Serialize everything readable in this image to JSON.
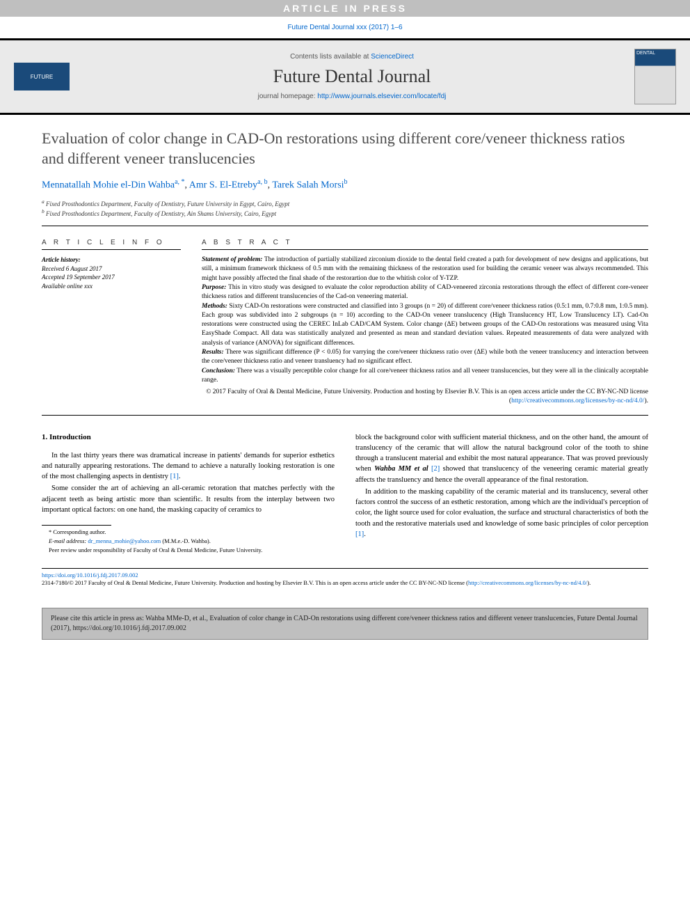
{
  "banner": {
    "text": "ARTICLE IN PRESS"
  },
  "journal_ref": "Future Dental Journal xxx (2017) 1–6",
  "header": {
    "contents_prefix": "Contents lists available at ",
    "contents_link": "ScienceDirect",
    "journal_name": "Future Dental Journal",
    "homepage_prefix": "journal homepage: ",
    "homepage_url": "http://www.journals.elsevier.com/locate/fdj",
    "left_logo_text": "FUTURE",
    "right_cover_text": "DENTAL"
  },
  "title": "Evaluation of color change in CAD-On restorations using different core/veneer thickness ratios and different veneer translucencies",
  "authors": [
    {
      "name": "Mennatallah Mohie el-Din Wahba",
      "sup": "a, *"
    },
    {
      "name": "Amr S. El-Etreby",
      "sup": "a, b"
    },
    {
      "name": "Tarek Salah Morsi",
      "sup": "b"
    }
  ],
  "affiliations": [
    {
      "key": "a",
      "text": "Fixed Prosthodontics Department, Faculty of Dentistry, Future University in Egypt, Cairo, Egypt"
    },
    {
      "key": "b",
      "text": "Fixed Prosthodontics Department, Faculty of Dentistry, Ain Shams University, Cairo, Egypt"
    }
  ],
  "article_info": {
    "header": "A R T I C L E  I N F O",
    "history_label": "Article history:",
    "received": "Received 6 August 2017",
    "accepted": "Accepted 19 September 2017",
    "online": "Available online xxx"
  },
  "abstract": {
    "header": "A B S T R A C T",
    "statement_label": "Statement of problem:",
    "statement": " The introduction of partially stabilized zirconium dioxide to the dental field created a path for development of new designs and applications, but still, a minimum framework thickness of 0.5 mm with the remaining thickness of the restoration used for building the ceramic veneer was always recommended. This might have possibly affected the final shade of the restorartion due to the whitish color of Y-TZP.",
    "purpose_label": "Purpose:",
    "purpose": " This in vitro study was designed to evaluate the color reproduction ability of CAD-veneered zirconia restorations through the effect of different core-veneer thickness ratios and different translucencies of the Cad-on veneering material.",
    "methods_label": "Methods:",
    "methods": " Sixty CAD-On restorations were constructed and classified into 3 groups (n = 20) of different core/veneer thickness ratios (0.5:1 mm, 0.7:0.8 mm, 1:0.5 mm). Each group was subdivided into 2 subgroups (n = 10) according to the CAD-On veneer translucency (High Translucency HT, Low Translucency LT). Cad-On restorations were constructed using the CEREC InLab CAD/CAM System. Color change (ΔE) between groups of the CAD-On restorations was measured using Vita EasyShade Compact. All data was statistically analyzed and presented as mean and standard deviation values. Repeated measurements of data were analyzed with analysis of variance (ANOVA) for significant differences.",
    "results_label": "Results:",
    "results": " There was significant difference (P < 0.05) for varrying the core/veneer thickness ratio over (ΔE) while both the veneer translucency and interaction between the core/veneer thickness ratio and veneer transluency had no significant effect.",
    "conclusion_label": "Conclusion:",
    "conclusion": " There was a visually perceptible color change for all core/veneer thickness ratios and all veneer translucencies, but they were all in the clinically acceptable range.",
    "copyright": "© 2017 Faculty of Oral & Dental Medicine, Future University. Production and hosting by Elsevier B.V. This is an open access article under the CC BY-NC-ND license (",
    "license_url": "http://creativecommons.org/licenses/by-nc-nd/4.0/",
    "copyright_close": ")."
  },
  "body": {
    "heading": "1. Introduction",
    "p1": "In the last thirty years there was dramatical increase in patients' demands for superior esthetics and naturally appearing restorations. The demand to achieve a naturally looking restoration is one of the most challenging aspects in dentistry ",
    "ref1": "[1]",
    "p1_end": ".",
    "p2": "Some consider the art of achieving an all-ceramic retoration that matches perfectly with the adjacent teeth as being artistic more than scientific. It results from the interplay between two important optical factors: on one hand, the masking capacity of ceramics to",
    "p3_a": "block the background color with sufficient material thickness, and on the other hand, the amount of translucency of the ceramic that will allow the natural background color of the tooth to shine through a translucent material and exhibit the most natural appearance. That was proved previously when ",
    "p3_bold": "Wahba MM et al",
    "ref2": " [2]",
    "p3_b": " showed that translucency of the veneering ceramic material greatly affects the transluency and hence the overall appearance of the final restoration.",
    "p4_a": "In addition to the masking capability of the ceramic material and its translucency, several other factors control the success of an esthetic restoration, among which are the individual's perception of color, the light source used for color evaluation, the surface and structural characteristics of both the tooth and the restorative materials used and knowledge of some basic principles of color perception ",
    "ref3": "[1]",
    "p4_end": "."
  },
  "footnotes": {
    "corr": "* Corresponding author.",
    "email_label": "E-mail address: ",
    "email": "dr_menna_mohie@yahoo.com",
    "email_suffix": " (M.M.e.-D. Wahba).",
    "peer": "Peer review under responsibility of Faculty of Oral & Dental Medicine, Future University."
  },
  "doi": {
    "url": "https://doi.org/10.1016/j.fdj.2017.09.002",
    "issn_line": "2314-7180/© 2017 Faculty of Oral & Dental Medicine, Future University. Production and hosting by Elsevier B.V. This is an open access article under the CC BY-NC-ND license (",
    "license_url": "http://creativecommons.org/licenses/by-nc-nd/4.0/",
    "close": ")."
  },
  "cite_box": "Please cite this article in press as: Wahba MMe-D, et al., Evaluation of color change in CAD-On restorations using different core/veneer thickness ratios and different veneer translucencies, Future Dental Journal (2017), https://doi.org/10.1016/j.fdj.2017.09.002",
  "colors": {
    "banner_bg": "#bfbfbf",
    "link": "#0066cc",
    "header_bg": "#eaeaea",
    "logo_bg": "#1a4a7a",
    "title_color": "#4a4a4a"
  }
}
